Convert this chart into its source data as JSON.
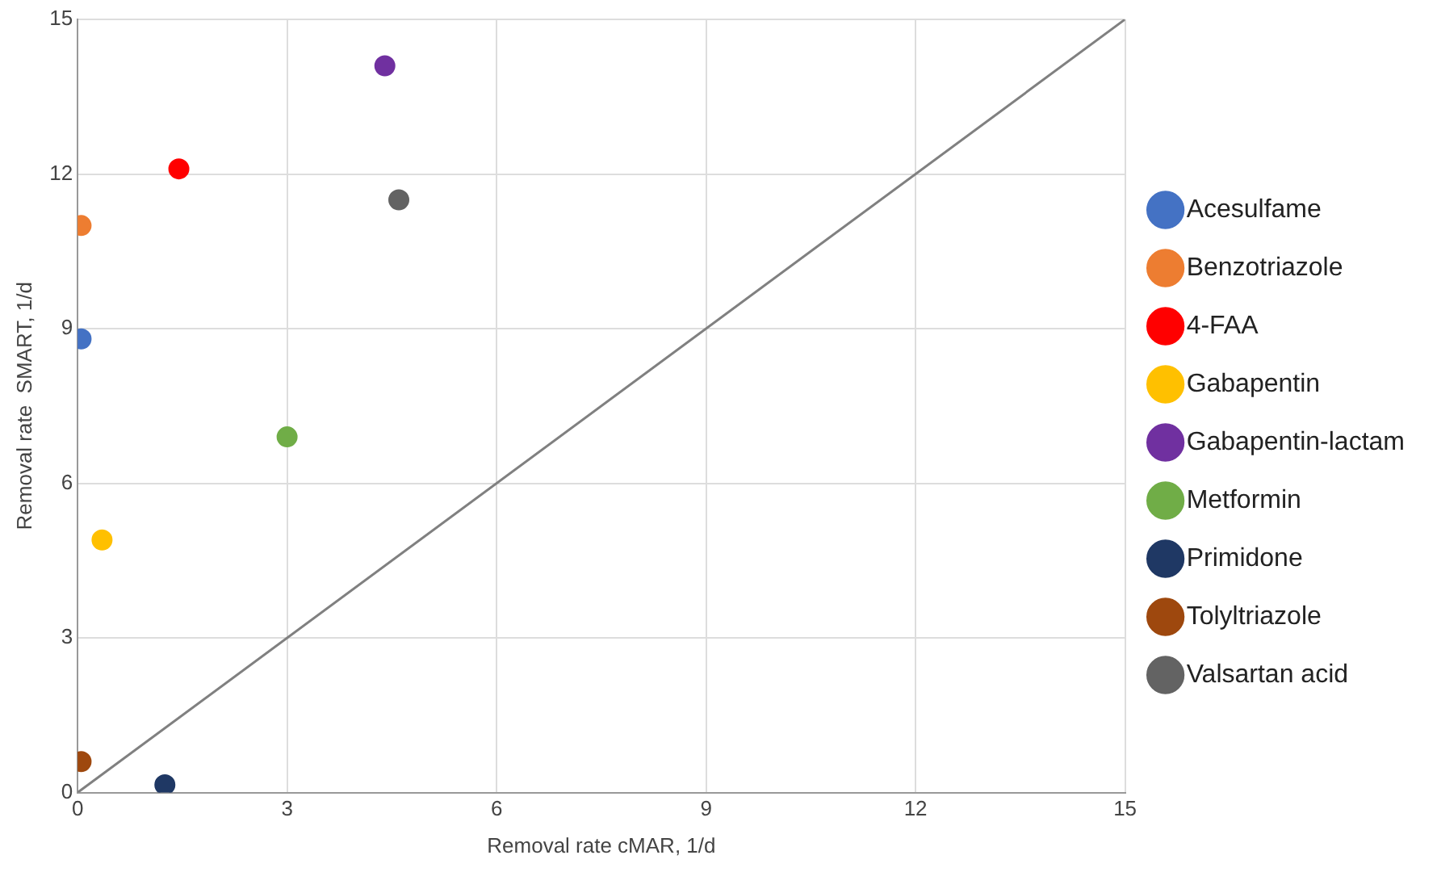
{
  "chart_data": {
    "type": "scatter",
    "xlabel": "Removal rate cMAR, 1/d",
    "ylabel": "Removal rate  SMART, 1/d",
    "xlim": [
      0,
      15
    ],
    "xticks": [
      0,
      3,
      6,
      9,
      12,
      15
    ],
    "ylim": [
      0,
      15
    ],
    "yticks": [
      0,
      3,
      6,
      9,
      12,
      15
    ],
    "grid": true,
    "legend": "right",
    "marker": "circle",
    "series": [
      {
        "name": "Acesulfame",
        "color": "#4472c4",
        "x": [
          0.05
        ],
        "values": [
          8.8
        ]
      },
      {
        "name": "Benzotriazole",
        "color": "#ed7d31",
        "x": [
          0.05
        ],
        "values": [
          11.0
        ]
      },
      {
        "name": "4-FAA",
        "color": "#ff0000",
        "x": [
          1.45
        ],
        "values": [
          12.1
        ]
      },
      {
        "name": "Gabapentin",
        "color": "#ffc000",
        "x": [
          0.35
        ],
        "values": [
          4.9
        ]
      },
      {
        "name": "Gabapentin-lactam",
        "color": "#7030a0",
        "x": [
          4.4
        ],
        "values": [
          14.1
        ]
      },
      {
        "name": "Metformin",
        "color": "#70ad47",
        "x": [
          3.0
        ],
        "values": [
          6.9
        ]
      },
      {
        "name": "Primidone",
        "color": "#1f3864",
        "x": [
          1.25
        ],
        "values": [
          0.15
        ]
      },
      {
        "name": "Tolyltriazole",
        "color": "#9e480e",
        "x": [
          0.05
        ],
        "values": [
          0.6
        ]
      },
      {
        "name": "Valsartan acid",
        "color": "#636363",
        "x": [
          4.6
        ],
        "values": [
          11.5
        ]
      },
      {
        "type": "line",
        "color": "#808080",
        "marker": "none",
        "x": [
          0,
          15
        ],
        "values": [
          0,
          15
        ]
      }
    ]
  }
}
